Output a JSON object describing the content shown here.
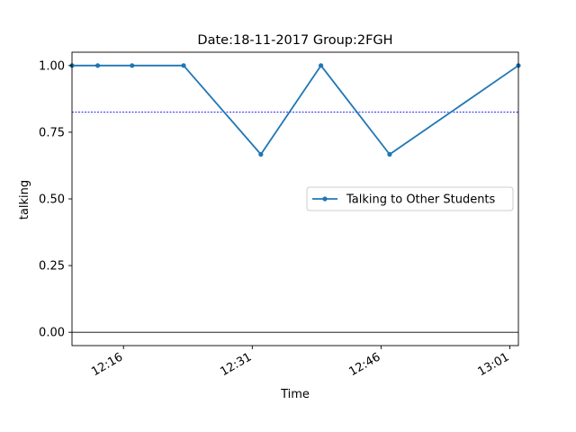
{
  "chart_data": {
    "type": "line",
    "title": "Date:18-11-2017  Group:2FGH",
    "xlabel": "Time",
    "ylabel": "talking",
    "x_unit": "time of day (HH:MM)",
    "xlim": [
      "12:10",
      "13:02"
    ],
    "ylim": [
      -0.05,
      1.05
    ],
    "x_ticks": [
      "12:16",
      "12:31",
      "12:46",
      "13:01"
    ],
    "y_ticks": [
      "0.00",
      "0.25",
      "0.50",
      "0.75",
      "1.00"
    ],
    "grid": false,
    "legend_position": "center-right",
    "series": [
      {
        "name": "Talking to Other Students",
        "color": "#1f77b4",
        "x": [
          "12:10",
          "12:13",
          "12:17",
          "12:23",
          "12:32",
          "12:39",
          "12:47",
          "13:02"
        ],
        "y": [
          1.0,
          1.0,
          1.0,
          1.0,
          0.667,
          1.0,
          0.667,
          1.0
        ]
      }
    ],
    "reference_lines": [
      {
        "y": 0.825,
        "style": "dotted",
        "color": "#0000ff"
      },
      {
        "y": 0.0,
        "style": "solid",
        "color": "#000000"
      }
    ]
  }
}
